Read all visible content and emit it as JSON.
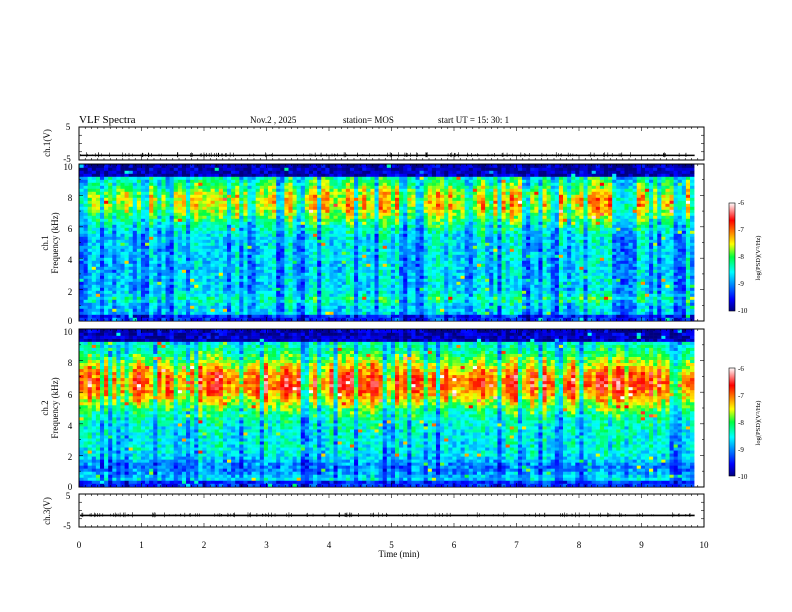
{
  "header": {
    "title": "VLF Spectra",
    "date": "Nov.2 , 2025",
    "station": "station= MOS",
    "start_ut": "start UT = 15: 30: 1"
  },
  "chart_data": [
    {
      "type": "line",
      "id": "ch1_waveform",
      "ylabel": "ch.1(V)",
      "ylim": [
        -5,
        5
      ],
      "yticks": [
        "5",
        "-5"
      ],
      "xlim": [
        0,
        10
      ],
      "baseline": -3.6
    },
    {
      "type": "heatmap",
      "id": "ch1_spectrogram",
      "ylabel_line1": "ch.1",
      "ylabel_line2": "Frequency (kHz)",
      "ylim": [
        0,
        10
      ],
      "yticks": [
        "0",
        "2",
        "4",
        "6",
        "8",
        "10"
      ],
      "xlim": [
        0,
        9.85
      ],
      "colorbar": {
        "min": -10,
        "max": -6,
        "ticks": [
          "-6",
          "-7",
          "-8",
          "-9",
          "-10"
        ],
        "label": "log(PSD)(V²/Hz)"
      }
    },
    {
      "type": "heatmap",
      "id": "ch2_spectrogram",
      "ylabel_line1": "ch.2",
      "ylabel_line2": "Frequency (kHz)",
      "ylim": [
        0,
        10
      ],
      "yticks": [
        "0",
        "2",
        "4",
        "6",
        "8",
        "10"
      ],
      "xlim": [
        0,
        9.85
      ],
      "colorbar": {
        "min": -10,
        "max": -6,
        "ticks": [
          "-6",
          "-7",
          "-8",
          "-9",
          "-10"
        ],
        "label": "log(PSD)(V²/Hz)"
      }
    },
    {
      "type": "line",
      "id": "ch3_waveform",
      "ylabel": "ch.3(V)",
      "ylim": [
        -5,
        5
      ],
      "yticks": [
        "5",
        "-5"
      ],
      "xlim": [
        0,
        10
      ],
      "baseline": -1.5
    }
  ],
  "xaxis": {
    "label": "Time (min)",
    "ticks": [
      "0",
      "1",
      "2",
      "3",
      "4",
      "5",
      "6",
      "7",
      "8",
      "9",
      "10"
    ],
    "range": [
      0,
      10
    ]
  }
}
